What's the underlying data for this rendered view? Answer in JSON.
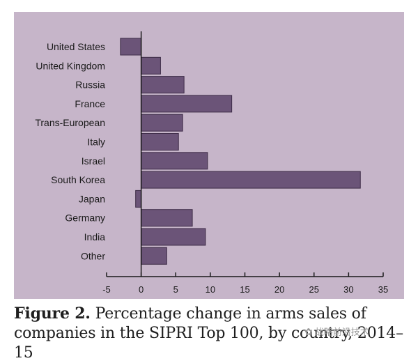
{
  "chart_data": {
    "type": "bar",
    "orientation": "horizontal",
    "categories": [
      "United States",
      "United Kingdom",
      "Russia",
      "France",
      "Trans-European",
      "Italy",
      "Israel",
      "South Korea",
      "Japan",
      "Germany",
      "India",
      "Other"
    ],
    "values": [
      -3,
      2.8,
      6.2,
      13.1,
      6.0,
      5.4,
      9.6,
      31.7,
      -0.8,
      7.4,
      9.3,
      3.7
    ],
    "xlim": [
      -5,
      35
    ],
    "x_ticks": [
      -5,
      0,
      5,
      10,
      15,
      20,
      25,
      30,
      35
    ],
    "grid": false,
    "colors": {
      "bar": "#6b5478",
      "bar_edge": "#3d2c47",
      "panel": "#c6b5c9",
      "axis": "#1a1a1a"
    }
  },
  "caption": {
    "lead": "Figure 2.",
    "text": "Percentage change in arms sales of companies in the SIPRI Top 100, by country, 2014–15"
  },
  "watermark": {
    "text": "战略前沿技术",
    "icon": "wechat-icon"
  }
}
